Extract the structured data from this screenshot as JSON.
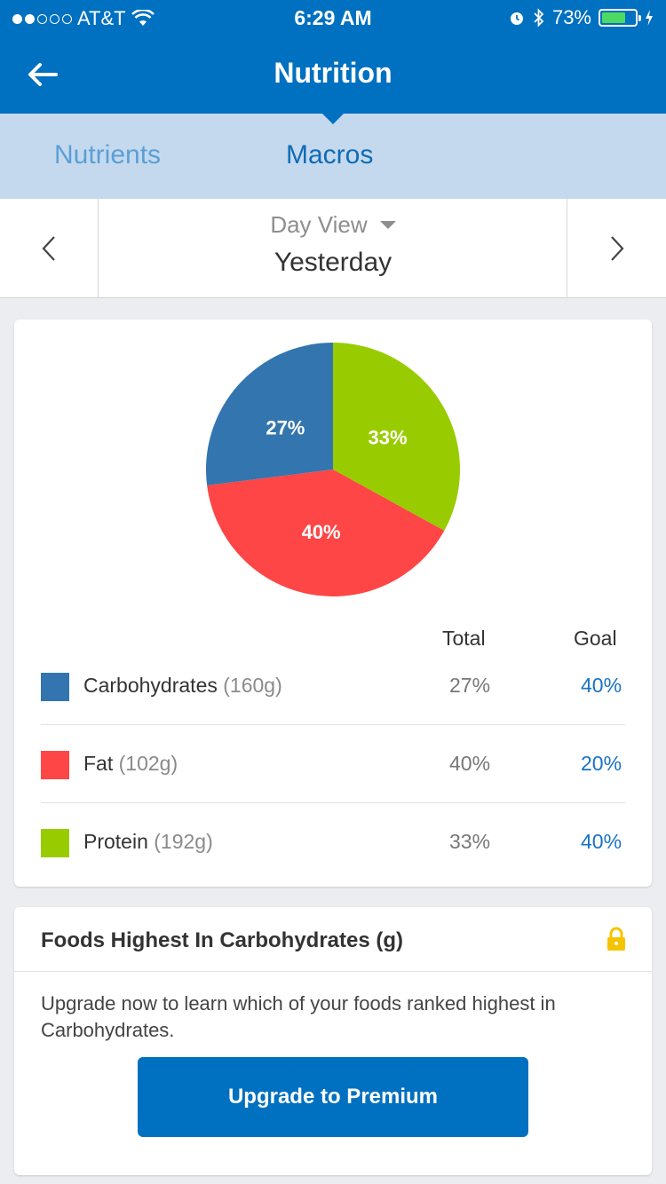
{
  "status_bar": {
    "carrier": "AT&T",
    "time": "6:29 AM",
    "battery": "73%",
    "battery_level": 0.73
  },
  "nav": {
    "title": "Nutrition"
  },
  "tabs": [
    {
      "label": "Nutrients",
      "active": false
    },
    {
      "label": "Macros",
      "active": true
    }
  ],
  "date_picker": {
    "view": "Day View",
    "date": "Yesterday"
  },
  "table": {
    "total_header": "Total",
    "goal_header": "Goal",
    "rows": [
      {
        "name": "Carbohydrates",
        "grams": "(160g)",
        "total": "27%",
        "goal": "40%",
        "color": "#3375AE"
      },
      {
        "name": "Fat",
        "grams": "(102g)",
        "total": "40%",
        "goal": "20%",
        "color": "#FE4646"
      },
      {
        "name": "Protein",
        "grams": "(192g)",
        "total": "33%",
        "goal": "40%",
        "color": "#99CC00"
      }
    ]
  },
  "chart_data": {
    "type": "pie",
    "categories": [
      "Protein",
      "Fat",
      "Carbohydrates"
    ],
    "values": [
      33,
      40,
      27
    ],
    "labels": [
      "33%",
      "40%",
      "27%"
    ],
    "colors": [
      "#99CC00",
      "#FE4646",
      "#3375AE"
    ]
  },
  "foods_card": {
    "title": "Foods Highest In Carbohydrates (g)",
    "message": "Upgrade now to learn which of your foods ranked highest in Carbohydrates.",
    "button_label": "Upgrade to Premium",
    "lock_color": "#F5C400"
  },
  "colors": {
    "brand": "#0070C0",
    "tab_bg": "#C4D9EE"
  }
}
